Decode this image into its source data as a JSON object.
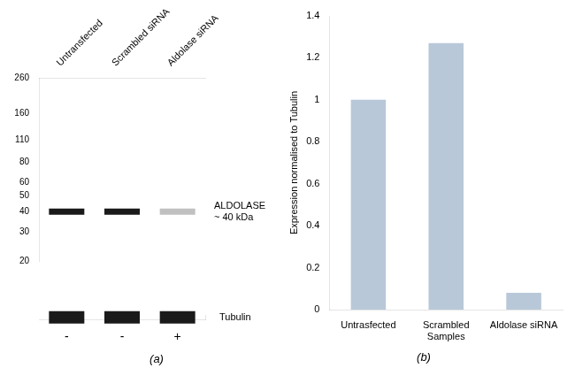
{
  "chart_data": [
    {
      "type": "blot",
      "categories": [
        "Untransfected",
        "Scrambled siRNA",
        "Aldolase siRNA"
      ],
      "log": "y",
      "ylim": [
        20,
        260
      ],
      "yticks": [
        260,
        160,
        110,
        80,
        60,
        50,
        40,
        30,
        20
      ],
      "grid": false,
      "series": [
        {
          "name": "ALDOLASE\n~ 40 kDa",
          "values": [
            40,
            40,
            40
          ],
          "colors": [
            "#1a1a1a",
            "#1a1a1a",
            "#c0c0c0"
          ],
          "marker": "band"
        }
      ]
    },
    {
      "type": "blot",
      "title": "(a)",
      "categories": [
        "-",
        "-",
        "+"
      ],
      "grid": false,
      "series": [
        {
          "name": "Tubulin",
          "values": [
            "Tubulin",
            "Tubulin",
            "Tubulin"
          ],
          "color": "#1a1a1a",
          "marker": "band"
        }
      ]
    },
    {
      "type": "bar",
      "title": "(b)",
      "categories": [
        "Untrasfected",
        "Scrambled\nSamples",
        "Aldolase siRNA"
      ],
      "values": [
        1.0,
        1.27,
        0.08
      ],
      "color": "#b8c8d8",
      "ylabel": "Expression normalised to Tubulin",
      "ylim": [
        0,
        1.4
      ],
      "yticks": [
        0,
        0.2,
        0.4,
        0.6,
        0.8,
        1.0,
        1.2,
        1.4
      ],
      "grid": false
    }
  ]
}
